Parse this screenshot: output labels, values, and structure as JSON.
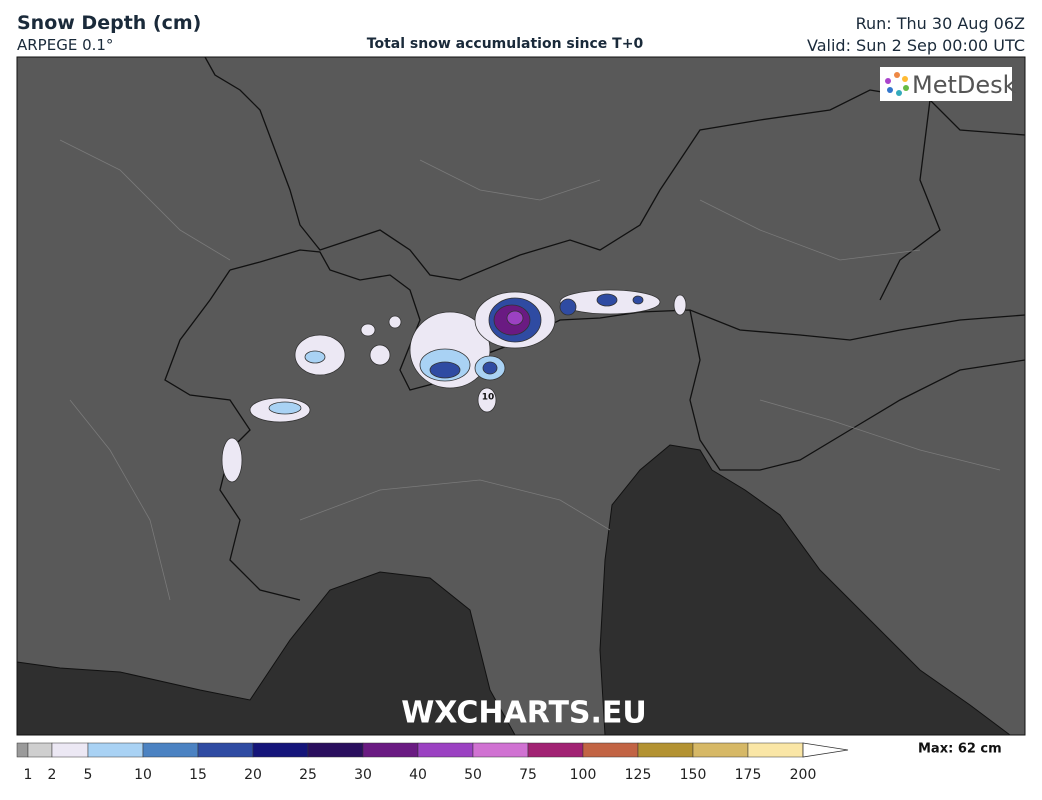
{
  "header": {
    "title": "Snow Depth (cm)",
    "model": "ARPEGE 0.1°",
    "subtitle": "Total snow accumulation since T+0",
    "run": "Run: Thu 30 Aug 06Z",
    "valid": "Valid: Sun 2 Sep 00:00 UTC"
  },
  "map": {
    "logo": "MetDesk",
    "watermark": "WXCHARTS.EU",
    "contour_label": "10"
  },
  "legend": {
    "max": "Max: 62 cm",
    "levels": [
      1,
      2,
      5,
      10,
      15,
      20,
      25,
      30,
      40,
      50,
      75,
      100,
      125,
      150,
      175,
      200
    ],
    "colors": [
      "#9a9a9a",
      "#cfcfcf",
      "#ece8f4",
      "#a9d2f4",
      "#4b82c2",
      "#2f4ba2",
      "#15157a",
      "#2a0f5e",
      "#6a1a82",
      "#9b41c2",
      "#d072d2",
      "#a12273",
      "#c26444",
      "#b39232",
      "#d6b866",
      "#fae6a6"
    ]
  }
}
